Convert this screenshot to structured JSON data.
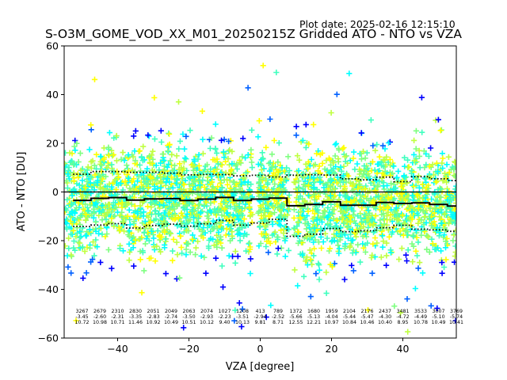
{
  "plot_date": "Plot date: 2025-02-16 12:15:10",
  "chart_data": {
    "type": "scatter",
    "title": "S-O3M_GOME_VOD_XX_M01_20250215Z Gridded ATO - NTO vs VZA",
    "xlabel": "VZA [degree]",
    "ylabel": "ATO - NTO [DU]",
    "xlim": [
      -55,
      55
    ],
    "ylim": [
      -60,
      60
    ],
    "xticks": [
      -40,
      -20,
      0,
      20,
      40
    ],
    "yticks": [
      -60,
      -40,
      -20,
      0,
      20,
      40,
      60
    ],
    "xtick_labels": [
      "−40",
      "−20",
      "0",
      "20",
      "40"
    ],
    "ytick_labels": [
      "−60",
      "−40",
      "−20",
      "0",
      "20",
      "40",
      "60"
    ],
    "grid": false,
    "marker": "+",
    "colors": {
      "points": [
        "#00ffff",
        "#40ffbf",
        "#7fff80",
        "#bfff40",
        "#ffff00",
        "#0000ff",
        "#0060ff"
      ],
      "zero_line": "#000000",
      "mean_line": "#000000",
      "std_lines": "#000000"
    },
    "bins": [
      {
        "vza": -50,
        "count": "3267",
        "mean": "-3.45",
        "std": "10.72"
      },
      {
        "vza": -45,
        "count": "2679",
        "mean": "-2.60",
        "std": "10.98"
      },
      {
        "vza": -40,
        "count": "2310",
        "mean": "-2.31",
        "std": "10.71"
      },
      {
        "vza": -35,
        "count": "2830",
        "mean": "-3.35",
        "std": "11.46"
      },
      {
        "vza": -30,
        "count": "2051",
        "mean": "-2.83",
        "std": "10.92"
      },
      {
        "vza": -25,
        "count": "2049",
        "mean": "-2.74",
        "std": "10.49"
      },
      {
        "vza": -20,
        "count": "2063",
        "mean": "-3.50",
        "std": "10.51"
      },
      {
        "vza": -15,
        "count": "2074",
        "mean": "-2.93",
        "std": "10.12"
      },
      {
        "vza": -10,
        "count": "1027",
        "mean": "-2.23",
        "std": "9.40"
      },
      {
        "vza": -5,
        "count": "1208",
        "mean": "-3.51",
        "std": "10.13"
      },
      {
        "vza": 0,
        "count": "413",
        "mean": "-2.94",
        "std": "9.81"
      },
      {
        "vza": 5,
        "count": "789",
        "mean": "-2.52",
        "std": "8.71"
      },
      {
        "vza": 10,
        "count": "1372",
        "mean": "-5.66",
        "std": "12.55"
      },
      {
        "vza": 15,
        "count": "1680",
        "mean": "-5.13",
        "std": "12.21"
      },
      {
        "vza": 20,
        "count": "1959",
        "mean": "-4.04",
        "std": "10.97"
      },
      {
        "vza": 25,
        "count": "2104",
        "mean": "-5.44",
        "std": "10.84"
      },
      {
        "vza": 30,
        "count": "2176",
        "mean": "-5.47",
        "std": "10.46"
      },
      {
        "vza": 35,
        "count": "2437",
        "mean": "-4.30",
        "std": "10.40"
      },
      {
        "vza": 40,
        "count": "3481",
        "mean": "-4.72",
        "std": "8.95"
      },
      {
        "vza": 45,
        "count": "3533",
        "mean": "-4.49",
        "std": "10.78"
      },
      {
        "vza": 50,
        "count": "3007",
        "mean": "-5.10",
        "std": "10.49"
      },
      {
        "vza": 55,
        "count": "3769",
        "mean": "-5.74",
        "std": "10.41"
      }
    ]
  }
}
